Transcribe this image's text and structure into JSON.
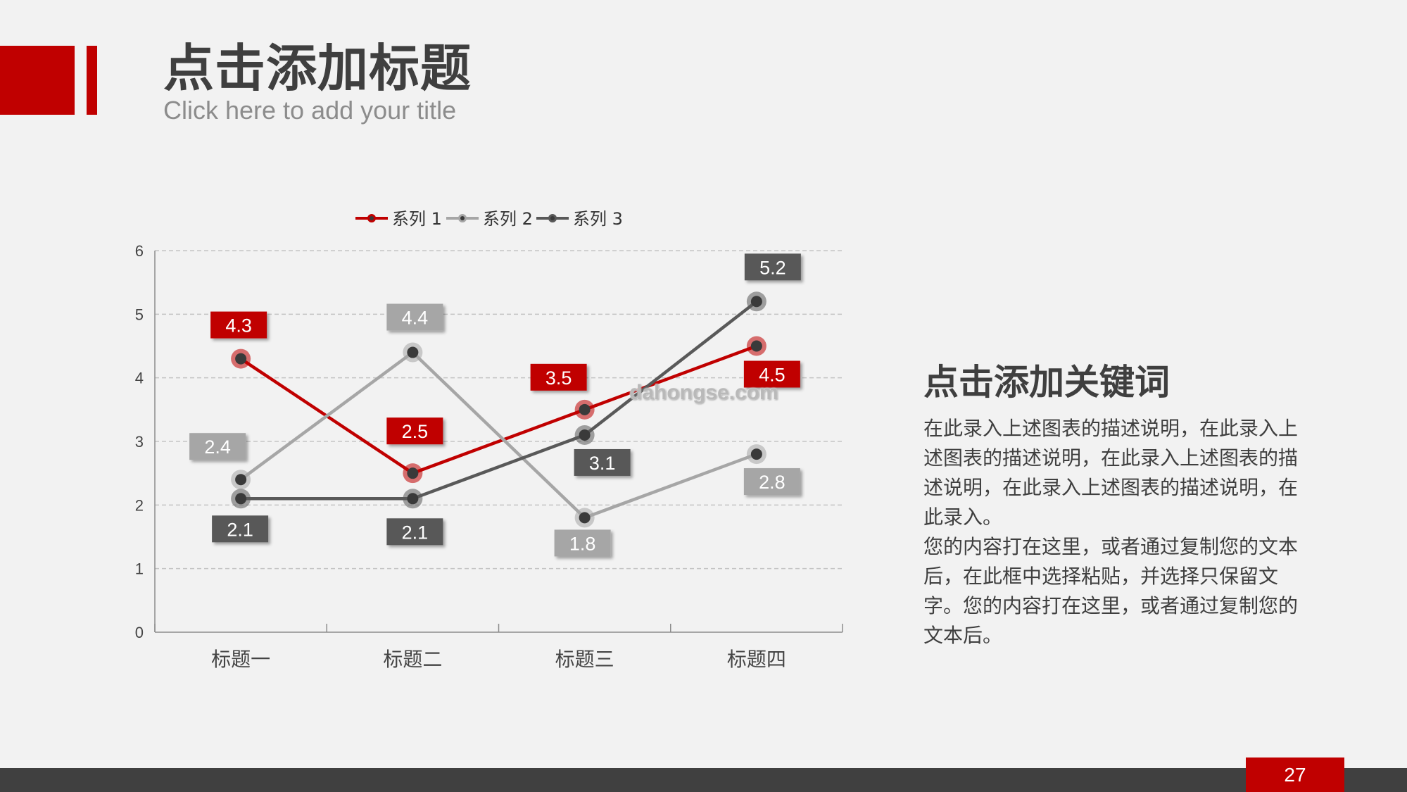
{
  "slide": {
    "title": "点击添加标题",
    "subtitle": "Click here to add your title",
    "page_number": "27",
    "watermark": "dahongse.com"
  },
  "keyword": {
    "title": "点击添加关键词",
    "paragraphs": [
      "在此录入上述图表的描述说明，在此录入上述图表的描述说明，在此录入上述图表的描述说明，在此录入上述图表的描述说明，在此录入。",
      "您的内容打在这里，或者通过复制您的文本后，在此框中选择粘贴，并选择只保留文字。您的内容打在这里，或者通过复制您的文本后。"
    ]
  },
  "colors": {
    "accent_red": "#c00000",
    "series_1": "#c00000",
    "series_2": "#a6a6a6",
    "series_3": "#595959",
    "footer": "#404040"
  },
  "chart_data": {
    "type": "line",
    "categories": [
      "标题一",
      "标题二",
      "标题三",
      "标题四"
    ],
    "series": [
      {
        "name": "系列 1",
        "values": [
          4.3,
          2.5,
          3.5,
          4.5
        ]
      },
      {
        "name": "系列 2",
        "values": [
          2.4,
          4.4,
          1.8,
          2.8
        ]
      },
      {
        "name": "系列 3",
        "values": [
          2.1,
          2.1,
          3.1,
          5.2
        ]
      }
    ],
    "ylim": [
      0,
      6
    ],
    "yticks": [
      0,
      1,
      2,
      3,
      4,
      5,
      6
    ],
    "grid": true,
    "legend": "top"
  }
}
